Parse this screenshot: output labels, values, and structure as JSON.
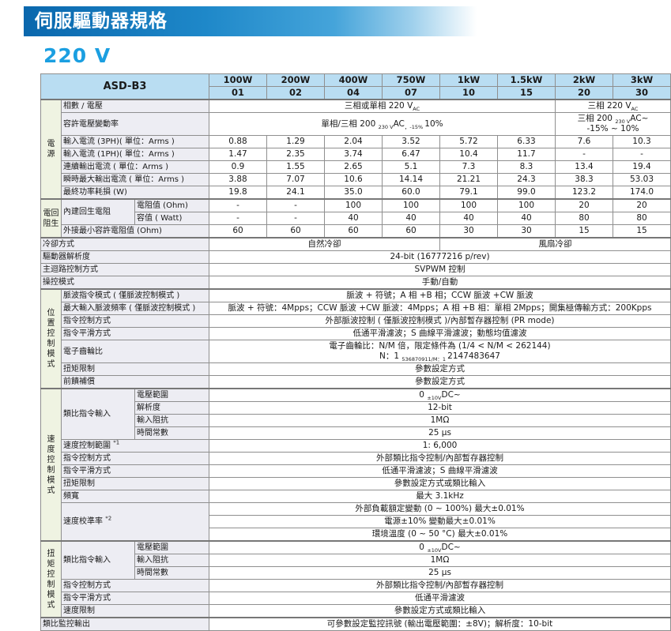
{
  "page": {
    "banner_title": "伺服驅動器規格",
    "section_title": "220 V"
  },
  "colors": {
    "banner_blue": "#0a67ad",
    "banner_blue_light": "#45a4da",
    "title_blue": "#1b9fe1",
    "header_bg": "#b9ddf2",
    "label_bg": "#ededf3",
    "group_bg": "#eff3e2",
    "border_gray": "#8f8f8f"
  },
  "table": {
    "rows": [
      {
        "c": [
          {
            "t": "ASD-B3",
            "k": "hm",
            "cs": 3,
            "rs": 2
          },
          {
            "t": "100W",
            "k": "h"
          },
          {
            "t": "200W",
            "k": "h"
          },
          {
            "t": "400W",
            "k": "h"
          },
          {
            "t": "750W",
            "k": "h"
          },
          {
            "t": "1kW",
            "k": "h"
          },
          {
            "t": "1.5kW",
            "k": "h"
          },
          {
            "t": "2kW",
            "k": "h"
          },
          {
            "t": "3kW",
            "k": "h"
          }
        ]
      },
      {
        "c": [
          {
            "t": "01",
            "k": "h"
          },
          {
            "t": "02",
            "k": "h"
          },
          {
            "t": "04",
            "k": "h"
          },
          {
            "t": "07",
            "k": "h"
          },
          {
            "t": "10",
            "k": "h"
          },
          {
            "t": "15",
            "k": "h"
          },
          {
            "t": "20",
            "k": "h"
          },
          {
            "t": "30",
            "k": "h"
          }
        ]
      },
      {
        "sec": true,
        "c": [
          {
            "t": "電\n源",
            "k": "g",
            "rs": 7
          },
          {
            "t": "相數 / 電壓",
            "k": "l",
            "cs": 2
          },
          {
            "t": "三相或單相 220 V~AC~",
            "k": "v",
            "cs": 6
          },
          {
            "t": "三相 220 V~AC~",
            "k": "v",
            "cs": 2
          }
        ]
      },
      {
        "c": [
          {
            "t": "容許電壓變動率",
            "k": "l",
            "cs": 2
          },
          {
            "t": "單相/三相 200 ~ 230 V~AC~，-15% ~ 10%",
            "k": "v",
            "cs": 6
          },
          {
            "t": "三相 200 ~ 230 V~AC~\n-15% ~ 10%",
            "k": "v",
            "cs": 2
          }
        ]
      },
      {
        "c": [
          {
            "t": "輸入電流 (3PH)( 單位：Arms )",
            "k": "l",
            "cs": 2
          },
          {
            "t": "0.88",
            "k": "v"
          },
          {
            "t": "1.29",
            "k": "v"
          },
          {
            "t": "2.04",
            "k": "v"
          },
          {
            "t": "3.52",
            "k": "v"
          },
          {
            "t": "5.72",
            "k": "v"
          },
          {
            "t": "6.33",
            "k": "v"
          },
          {
            "t": "7.6",
            "k": "v"
          },
          {
            "t": "10.3",
            "k": "v"
          }
        ]
      },
      {
        "c": [
          {
            "t": "輸入電流 (1PH)( 單位：Arms )",
            "k": "l",
            "cs": 2
          },
          {
            "t": "1.47",
            "k": "v"
          },
          {
            "t": "2.35",
            "k": "v"
          },
          {
            "t": "3.74",
            "k": "v"
          },
          {
            "t": "6.47",
            "k": "v"
          },
          {
            "t": "10.4",
            "k": "v"
          },
          {
            "t": "11.7",
            "k": "v"
          },
          {
            "t": "-",
            "k": "v"
          },
          {
            "t": "-",
            "k": "v"
          }
        ]
      },
      {
        "c": [
          {
            "t": "連續輸出電流 ( 單位：Arms )",
            "k": "l",
            "cs": 2
          },
          {
            "t": "0.9",
            "k": "v"
          },
          {
            "t": "1.55",
            "k": "v"
          },
          {
            "t": "2.65",
            "k": "v"
          },
          {
            "t": "5.1",
            "k": "v"
          },
          {
            "t": "7.3",
            "k": "v"
          },
          {
            "t": "8.3",
            "k": "v"
          },
          {
            "t": "13.4",
            "k": "v"
          },
          {
            "t": "19.4",
            "k": "v"
          }
        ]
      },
      {
        "c": [
          {
            "t": "瞬時最大輸出電流 ( 單位：Arms )",
            "k": "l",
            "cs": 2
          },
          {
            "t": "3.88",
            "k": "v"
          },
          {
            "t": "7.07",
            "k": "v"
          },
          {
            "t": "10.6",
            "k": "v"
          },
          {
            "t": "14.14",
            "k": "v"
          },
          {
            "t": "21.21",
            "k": "v"
          },
          {
            "t": "24.3",
            "k": "v"
          },
          {
            "t": "38.3",
            "k": "v"
          },
          {
            "t": "53.03",
            "k": "v"
          }
        ]
      },
      {
        "c": [
          {
            "t": "最終功率耗損 (W)",
            "k": "l",
            "cs": 2
          },
          {
            "t": "19.8",
            "k": "v"
          },
          {
            "t": "24.1",
            "k": "v"
          },
          {
            "t": "35.0",
            "k": "v"
          },
          {
            "t": "60.0",
            "k": "v"
          },
          {
            "t": "79.1",
            "k": "v"
          },
          {
            "t": "99.0",
            "k": "v"
          },
          {
            "t": "123.2",
            "k": "v"
          },
          {
            "t": "174.0",
            "k": "v"
          }
        ]
      },
      {
        "sec": true,
        "c": [
          {
            "t": "電回\n阻生",
            "k": "g",
            "rs": 3
          },
          {
            "t": "內建回生電阻",
            "k": "l",
            "rs": 2
          },
          {
            "t": "電阻值 (Ohm)",
            "k": "s"
          },
          {
            "t": "-",
            "k": "v"
          },
          {
            "t": "-",
            "k": "v"
          },
          {
            "t": "100",
            "k": "v"
          },
          {
            "t": "100",
            "k": "v"
          },
          {
            "t": "100",
            "k": "v"
          },
          {
            "t": "100",
            "k": "v"
          },
          {
            "t": "20",
            "k": "v"
          },
          {
            "t": "20",
            "k": "v"
          }
        ]
      },
      {
        "c": [
          {
            "t": "容值 ( Watt)",
            "k": "s"
          },
          {
            "t": "-",
            "k": "v"
          },
          {
            "t": "-",
            "k": "v"
          },
          {
            "t": "40",
            "k": "v"
          },
          {
            "t": "40",
            "k": "v"
          },
          {
            "t": "40",
            "k": "v"
          },
          {
            "t": "40",
            "k": "v"
          },
          {
            "t": "80",
            "k": "v"
          },
          {
            "t": "80",
            "k": "v"
          }
        ]
      },
      {
        "c": [
          {
            "t": "外接最小容許電阻值 (Ohm)",
            "k": "l",
            "cs": 2
          },
          {
            "t": "60",
            "k": "v"
          },
          {
            "t": "60",
            "k": "v"
          },
          {
            "t": "60",
            "k": "v"
          },
          {
            "t": "60",
            "k": "v"
          },
          {
            "t": "30",
            "k": "v"
          },
          {
            "t": "30",
            "k": "v"
          },
          {
            "t": "15",
            "k": "v"
          },
          {
            "t": "15",
            "k": "v"
          }
        ]
      },
      {
        "sec": true,
        "c": [
          {
            "t": "冷卻方式",
            "k": "l",
            "cs": 3
          },
          {
            "t": "自然冷卻",
            "k": "v",
            "cs": 4
          },
          {
            "t": "風扇冷卻",
            "k": "v",
            "cs": 4
          }
        ]
      },
      {
        "c": [
          {
            "t": "驅動器解析度",
            "k": "l",
            "cs": 3
          },
          {
            "t": "24-bit (16777216 p/rev)",
            "k": "v",
            "cs": 8
          }
        ]
      },
      {
        "c": [
          {
            "t": "主迴路控制方式",
            "k": "l",
            "cs": 3
          },
          {
            "t": "SVPWM 控制",
            "k": "v",
            "cs": 8
          }
        ]
      },
      {
        "c": [
          {
            "t": "操控模式",
            "k": "l",
            "cs": 3
          },
          {
            "t": "手動/自動",
            "k": "v",
            "cs": 8
          }
        ]
      },
      {
        "sec": true,
        "c": [
          {
            "t": "位\n置\n控\n制\n模\n式",
            "k": "g",
            "rs": 7
          },
          {
            "t": "脈波指令模式 ( 僅脈波控制模式 )",
            "k": "l",
            "cs": 2
          },
          {
            "t": "脈波 + 符號；A 相 +B 相；CCW 脈波 +CW 脈波",
            "k": "v",
            "cs": 8
          }
        ]
      },
      {
        "c": [
          {
            "t": "最大輸入脈波頻率 ( 僅脈波控制模式 )",
            "k": "l",
            "cs": 2
          },
          {
            "t": "脈波 + 符號：4Mpps；CCW 脈波 +CW 脈波：4Mpps；A 相 +B 相：單相 2Mpps；開集極傳輸方式：200Kpps",
            "k": "v",
            "cs": 8
          }
        ]
      },
      {
        "c": [
          {
            "t": "指令控制方式",
            "k": "l",
            "cs": 2
          },
          {
            "t": "外部脈波控制 ( 僅脈波控制模式 )/內部暫存器控制 (PR mode)",
            "k": "v",
            "cs": 8
          }
        ]
      },
      {
        "c": [
          {
            "t": "指令平滑方式",
            "k": "l",
            "cs": 2
          },
          {
            "t": "低通平滑濾波；S 曲線平滑濾波；動態均值濾波",
            "k": "v",
            "cs": 8
          }
        ]
      },
      {
        "c": [
          {
            "t": "電子齒輪比",
            "k": "l",
            "cs": 2
          },
          {
            "t": "電子齒輪比：N/M 倍，限定條件為 (1/4 < N/M < 262144)\nN：1 ~ 536870911/M：1 ~ 2147483647",
            "k": "v",
            "cs": 8
          }
        ]
      },
      {
        "c": [
          {
            "t": "扭矩限制",
            "k": "l",
            "cs": 2
          },
          {
            "t": "參數設定方式",
            "k": "v",
            "cs": 8
          }
        ]
      },
      {
        "c": [
          {
            "t": "前饋補償",
            "k": "l",
            "cs": 2
          },
          {
            "t": "參數設定方式",
            "k": "v",
            "cs": 8
          }
        ]
      },
      {
        "sec": true,
        "c": [
          {
            "t": "速\n度\n控\n制\n模\n式",
            "k": "g",
            "rs": 12
          },
          {
            "t": "類比指令輸入",
            "k": "l",
            "rs": 4
          },
          {
            "t": "電壓範圍",
            "k": "s"
          },
          {
            "t": "0 ~ ±10V~DC~",
            "k": "v",
            "cs": 8
          }
        ]
      },
      {
        "c": [
          {
            "t": "解析度",
            "k": "s"
          },
          {
            "t": "12-bit",
            "k": "v",
            "cs": 8
          }
        ]
      },
      {
        "c": [
          {
            "t": "輸入阻抗",
            "k": "s"
          },
          {
            "t": "1MΩ",
            "k": "v",
            "cs": 8
          }
        ]
      },
      {
        "c": [
          {
            "t": "時間常數",
            "k": "s"
          },
          {
            "t": "25 μs",
            "k": "v",
            "cs": 8
          }
        ]
      },
      {
        "c": [
          {
            "t": "速度控制範圍 ^*1^",
            "k": "l",
            "cs": 2
          },
          {
            "t": "1: 6,000",
            "k": "v",
            "cs": 8
          }
        ]
      },
      {
        "c": [
          {
            "t": "指令控制方式",
            "k": "l",
            "cs": 2
          },
          {
            "t": "外部類比指令控制/內部暫存器控制",
            "k": "v",
            "cs": 8
          }
        ]
      },
      {
        "c": [
          {
            "t": "指令平滑方式",
            "k": "l",
            "cs": 2
          },
          {
            "t": "低通平滑濾波；S 曲線平滑濾波",
            "k": "v",
            "cs": 8
          }
        ]
      },
      {
        "c": [
          {
            "t": "扭矩限制",
            "k": "l",
            "cs": 2
          },
          {
            "t": "參數設定方式或類比輸入",
            "k": "v",
            "cs": 8
          }
        ]
      },
      {
        "c": [
          {
            "t": "頻寬",
            "k": "l",
            "cs": 2
          },
          {
            "t": "最大 3.1kHz",
            "k": "v",
            "cs": 8
          }
        ]
      },
      {
        "c": [
          {
            "t": "速度校準率 ^*2^",
            "k": "l",
            "cs": 2,
            "rs": 3
          },
          {
            "t": "外部負載額定變動 (0 ~ 100%) 最大±0.01%",
            "k": "v",
            "cs": 8
          }
        ]
      },
      {
        "c": [
          {
            "t": "電源±10% 變動最大±0.01%",
            "k": "v",
            "cs": 8
          }
        ]
      },
      {
        "c": [
          {
            "t": "環境溫度 (0 ~ 50 °C) 最大±0.01%",
            "k": "v",
            "cs": 8
          }
        ]
      },
      {
        "sec": true,
        "c": [
          {
            "t": "扭\n矩\n控\n制\n模\n式",
            "k": "g",
            "rs": 6
          },
          {
            "t": "類比指令輸入",
            "k": "l",
            "rs": 3
          },
          {
            "t": "電壓範圍",
            "k": "s"
          },
          {
            "t": "0 ~ ±10V~DC~",
            "k": "v",
            "cs": 8
          }
        ]
      },
      {
        "c": [
          {
            "t": "輸入阻抗",
            "k": "s"
          },
          {
            "t": "1MΩ",
            "k": "v",
            "cs": 8
          }
        ]
      },
      {
        "c": [
          {
            "t": "時間常數",
            "k": "s"
          },
          {
            "t": "25 μs",
            "k": "v",
            "cs": 8
          }
        ]
      },
      {
        "c": [
          {
            "t": "指令控制方式",
            "k": "l",
            "cs": 2
          },
          {
            "t": "外部類比指令控制/內部暫存器控制",
            "k": "v",
            "cs": 8
          }
        ]
      },
      {
        "c": [
          {
            "t": "指令平滑方式",
            "k": "l",
            "cs": 2
          },
          {
            "t": "低通平滑濾波",
            "k": "v",
            "cs": 8
          }
        ]
      },
      {
        "c": [
          {
            "t": "速度限制",
            "k": "l",
            "cs": 2
          },
          {
            "t": "參數設定方式或類比輸入",
            "k": "v",
            "cs": 8
          }
        ]
      },
      {
        "sec": true,
        "c": [
          {
            "t": "類比監控輸出",
            "k": "l",
            "cs": 3
          },
          {
            "t": "可參數設定監控訊號 (輸出電壓範圍：±8V)；解析度：10-bit",
            "k": "v",
            "cs": 8
          }
        ]
      }
    ]
  }
}
